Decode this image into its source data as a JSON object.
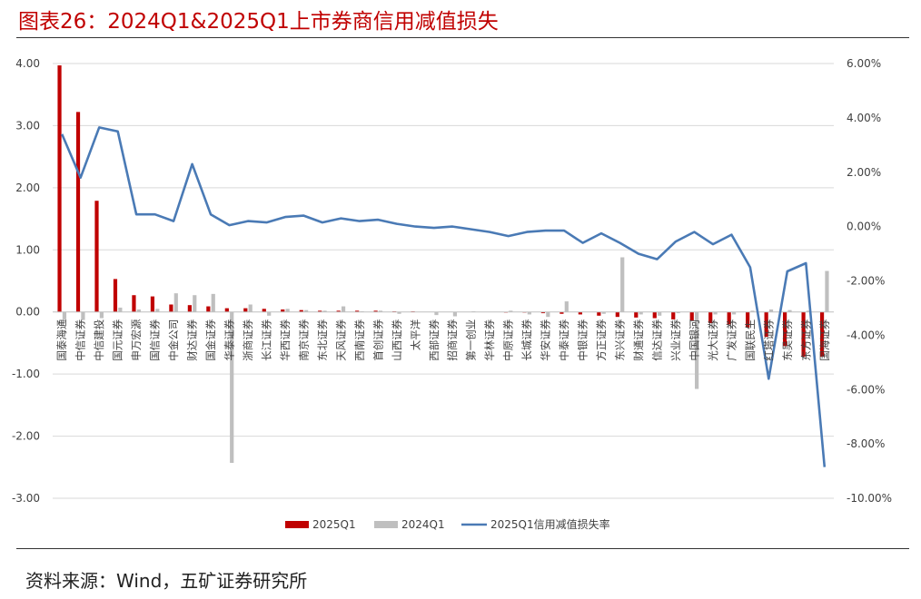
{
  "title": "图表26：2024Q1&2025Q1上市券商信用减值损失",
  "source": "资料来源：Wind，五矿证券研究所",
  "colors": {
    "series_2025": "#c00000",
    "series_2024": "#bfbfbf",
    "line": "#4a7ab5",
    "title": "#c00000"
  },
  "chart_data": {
    "type": "bar",
    "categories": [
      "国泰海通",
      "中信证券",
      "中信建投",
      "国元证券",
      "申万宏源",
      "国信证券",
      "中金公司",
      "财达证券",
      "国金证券",
      "华泰证券",
      "浙商证券",
      "长江证券",
      "华西证券",
      "南京证券",
      "东北证券",
      "天风证券",
      "西南证券",
      "首创证券",
      "山西证券",
      "太平洋",
      "西部证券",
      "招商证券",
      "第一创业",
      "华林证券",
      "中原证券",
      "长城证券",
      "华安证券",
      "中泰证券",
      "中银证券",
      "方正证券",
      "东兴证券",
      "财通证券",
      "信达证券",
      "兴业证券",
      "中国银河",
      "光大证券",
      "广发证券",
      "国联民生",
      "红塔证券",
      "东吴证券",
      "东方证券",
      "国海证券"
    ],
    "series": [
      {
        "name": "2025Q1",
        "axis": "left",
        "type": "bar",
        "values": [
          3.97,
          3.22,
          1.79,
          0.53,
          0.27,
          0.25,
          0.12,
          0.11,
          0.09,
          0.06,
          0.06,
          0.05,
          0.04,
          0.03,
          0.02,
          0.02,
          0.02,
          0.02,
          0.01,
          0.01,
          0.0,
          0.0,
          0.0,
          0.0,
          -0.01,
          -0.01,
          -0.02,
          -0.03,
          -0.04,
          -0.06,
          -0.08,
          -0.09,
          -0.1,
          -0.12,
          -0.14,
          -0.18,
          -0.2,
          -0.25,
          -0.4,
          -0.55,
          -0.72,
          -0.72
        ]
      },
      {
        "name": "2024Q1",
        "axis": "left",
        "type": "bar",
        "values": [
          -0.12,
          -0.13,
          -0.1,
          0.07,
          0.04,
          0.05,
          0.3,
          0.27,
          0.29,
          -2.43,
          0.12,
          -0.06,
          0.05,
          0.03,
          0.02,
          0.09,
          0.01,
          0.02,
          -0.03,
          0.0,
          -0.05,
          -0.07,
          0.01,
          0.0,
          0.02,
          -0.04,
          -0.08,
          0.17,
          0.0,
          -0.03,
          0.88,
          -0.04,
          -0.06,
          -0.02,
          -1.24,
          -0.04,
          -0.04,
          0.02,
          0.04,
          0.03,
          0.02,
          0.66
        ]
      },
      {
        "name": "2025Q1信用减值损失率",
        "axis": "right",
        "type": "line",
        "values": [
          3.4,
          1.8,
          3.65,
          3.5,
          0.45,
          0.45,
          0.2,
          2.3,
          0.45,
          0.05,
          0.2,
          0.15,
          0.35,
          0.4,
          0.15,
          0.3,
          0.2,
          0.25,
          0.1,
          0.0,
          -0.05,
          0.0,
          -0.1,
          -0.2,
          -0.35,
          -0.2,
          -0.15,
          -0.15,
          -0.6,
          -0.25,
          -0.6,
          -1.0,
          -1.2,
          -0.55,
          -0.2,
          -0.65,
          -0.3,
          -1.5,
          -5.6,
          -1.65,
          -1.35,
          -8.85
        ]
      }
    ],
    "y_left": {
      "min": -3.0,
      "max": 4.0,
      "step": 1.0,
      "ticks": [
        "4.00",
        "3.00",
        "2.00",
        "1.00",
        "0.00",
        "-1.00",
        "-2.00",
        "-3.00"
      ]
    },
    "y_right": {
      "min": -10,
      "max": 6,
      "step": 2,
      "ticks": [
        "6.00%",
        "4.00%",
        "2.00%",
        "0.00%",
        "-2.00%",
        "-4.00%",
        "-6.00%",
        "-8.00%",
        "-10.00%"
      ]
    },
    "grid": true,
    "legend_position": "bottom"
  }
}
